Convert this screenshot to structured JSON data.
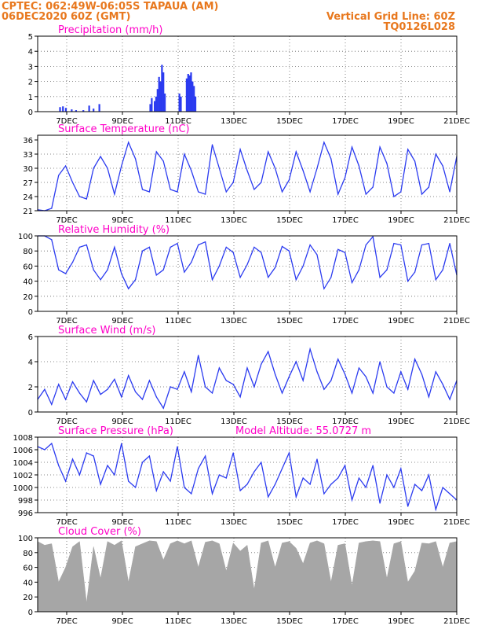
{
  "header": {
    "line1_left": "CPTEC:   062:49W-06:05S   TAPAUA (AM)",
    "line2_left": "06DEC2020 60Z (GMT)",
    "line2_right": "Vertical Grid Line: 60Z",
    "line3_right": "TQ0126L028"
  },
  "colors": {
    "header": "#e8781e",
    "title": "#ff00c8",
    "series": "#2b3bf0",
    "cloud": "#a6a6a6"
  },
  "x_labels": [
    "7DEC",
    "9DEC",
    "11DEC",
    "13DEC",
    "15DEC",
    "17DEC",
    "19DEC",
    "21DEC"
  ],
  "chart_data": [
    {
      "type": "bar",
      "title": "Precipitation (mm/h)",
      "ylim": [
        0,
        5
      ],
      "yticks": [
        0,
        1,
        2,
        3,
        4,
        5
      ],
      "x": [
        0.2,
        0.3,
        0.4,
        0.6,
        0.75,
        1.0,
        1.2,
        1.35,
        1.55,
        3.3,
        3.35,
        3.45,
        3.5,
        3.55,
        3.6,
        3.65,
        3.7,
        3.75,
        3.8,
        4.3,
        4.35,
        4.55,
        4.6,
        4.65,
        4.7,
        4.75,
        4.8,
        4.85
      ],
      "values": [
        0.3,
        0.35,
        0.25,
        0.15,
        0.1,
        0.1,
        0.4,
        0.2,
        0.5,
        0.5,
        0.9,
        0.7,
        1.0,
        1.5,
        2.3,
        2.0,
        3.1,
        2.6,
        1.2,
        1.2,
        1.0,
        2.2,
        2.5,
        2.4,
        2.6,
        2.0,
        1.7,
        1.0
      ]
    },
    {
      "type": "line",
      "title": "Surface Temperature (nC)",
      "ylim": [
        21,
        37
      ],
      "yticks": [
        21,
        24,
        27,
        30,
        33,
        36
      ],
      "x": [
        0,
        0.25,
        0.5,
        0.75,
        1.0,
        1.25,
        1.5,
        1.75,
        2.0,
        2.25,
        2.5,
        2.75,
        3.0,
        3.25,
        3.5,
        3.75,
        4.0,
        4.25,
        4.5,
        4.75,
        5.0,
        5.25,
        5.5,
        5.75,
        6.0,
        6.25,
        6.5,
        6.75,
        7.0,
        7.25,
        7.5,
        7.75,
        8.0,
        8.25,
        8.5,
        8.75,
        9.0,
        9.25,
        9.5,
        9.75,
        10.0,
        10.25,
        10.5,
        10.75,
        11.0,
        11.25,
        11.5,
        11.75,
        12.0,
        12.25,
        12.5,
        12.75,
        13.0,
        13.25,
        13.5,
        13.75,
        14.0,
        14.25,
        14.5,
        14.75,
        15.0
      ],
      "values": [
        21.2,
        21.0,
        21.5,
        28.5,
        30.5,
        27.0,
        24.0,
        23.5,
        30.0,
        32.5,
        30.0,
        24.5,
        30.5,
        35.5,
        32.0,
        25.5,
        25.0,
        33.5,
        31.5,
        25.5,
        25.0,
        33.0,
        29.5,
        25.0,
        24.5,
        35.0,
        30.0,
        25.0,
        27.0,
        34.0,
        29.5,
        25.5,
        27.0,
        33.5,
        30.0,
        25.0,
        27.5,
        33.5,
        29.5,
        25.0,
        30.0,
        35.5,
        32.0,
        24.5,
        28.0,
        34.5,
        30.5,
        24.5,
        26.0,
        34.5,
        31.0,
        24.0,
        25.0,
        34.0,
        31.5,
        24.5,
        26.0,
        33.0,
        30.5,
        25.0,
        32.5
      ]
    },
    {
      "type": "line",
      "title": "Relative Humidity (%)",
      "ylim": [
        0,
        100
      ],
      "yticks": [
        0,
        20,
        40,
        60,
        80,
        100
      ],
      "x": [
        0,
        0.25,
        0.5,
        0.75,
        1.0,
        1.25,
        1.5,
        1.75,
        2.0,
        2.25,
        2.5,
        2.75,
        3.0,
        3.25,
        3.5,
        3.75,
        4.0,
        4.25,
        4.5,
        4.75,
        5.0,
        5.25,
        5.5,
        5.75,
        6.0,
        6.25,
        6.5,
        6.75,
        7.0,
        7.25,
        7.5,
        7.75,
        8.0,
        8.25,
        8.5,
        8.75,
        9.0,
        9.25,
        9.5,
        9.75,
        10.0,
        10.25,
        10.5,
        10.75,
        11.0,
        11.25,
        11.5,
        11.75,
        12.0,
        12.25,
        12.5,
        12.75,
        13.0,
        13.25,
        13.5,
        13.75,
        14.0,
        14.25,
        14.5,
        14.75,
        15.0
      ],
      "values": [
        100,
        100,
        95,
        55,
        50,
        65,
        85,
        88,
        55,
        42,
        55,
        85,
        50,
        30,
        42,
        80,
        85,
        48,
        55,
        85,
        90,
        52,
        65,
        88,
        92,
        42,
        60,
        85,
        78,
        45,
        62,
        85,
        78,
        45,
        58,
        86,
        80,
        42,
        60,
        88,
        75,
        30,
        45,
        82,
        78,
        38,
        55,
        88,
        99,
        45,
        55,
        90,
        88,
        40,
        52,
        88,
        90,
        42,
        55,
        90,
        48
      ]
    },
    {
      "type": "line",
      "title": "Surface Wind (m/s)",
      "ylim": [
        0,
        6
      ],
      "yticks": [
        0,
        2,
        4,
        6
      ],
      "x": [
        0,
        0.25,
        0.5,
        0.75,
        1.0,
        1.25,
        1.5,
        1.75,
        2.0,
        2.25,
        2.5,
        2.75,
        3.0,
        3.25,
        3.5,
        3.75,
        4.0,
        4.25,
        4.5,
        4.75,
        5.0,
        5.25,
        5.5,
        5.75,
        6.0,
        6.25,
        6.5,
        6.75,
        7.0,
        7.25,
        7.5,
        7.75,
        8.0,
        8.25,
        8.5,
        8.75,
        9.0,
        9.25,
        9.5,
        9.75,
        10.0,
        10.25,
        10.5,
        10.75,
        11.0,
        11.25,
        11.5,
        11.75,
        12.0,
        12.25,
        12.5,
        12.75,
        13.0,
        13.25,
        13.5,
        13.75,
        14.0,
        14.25,
        14.5,
        14.75,
        15.0
      ],
      "values": [
        1.0,
        1.8,
        0.6,
        2.2,
        1.0,
        2.4,
        1.5,
        0.8,
        2.5,
        1.4,
        1.8,
        2.6,
        1.2,
        2.9,
        1.6,
        1.0,
        2.5,
        1.2,
        0.3,
        2.0,
        1.8,
        3.2,
        1.6,
        4.5,
        2.0,
        1.5,
        3.5,
        2.5,
        2.2,
        1.2,
        3.5,
        2.0,
        3.8,
        4.8,
        3.0,
        1.5,
        2.8,
        4.0,
        2.5,
        5.0,
        3.2,
        1.8,
        2.5,
        4.2,
        3.0,
        1.5,
        3.5,
        2.8,
        1.5,
        4.0,
        2.0,
        1.5,
        3.2,
        1.8,
        4.2,
        3.0,
        1.2,
        3.2,
        2.2,
        1.0,
        2.5
      ]
    },
    {
      "type": "line",
      "title": "Surface Pressure (hPa)",
      "annotation": "Model Altitude: 55.0727 m",
      "ylim": [
        996,
        1008
      ],
      "yticks": [
        996,
        998,
        1000,
        1002,
        1004,
        1006,
        1008
      ],
      "x": [
        0,
        0.25,
        0.5,
        0.75,
        1.0,
        1.25,
        1.5,
        1.75,
        2.0,
        2.25,
        2.5,
        2.75,
        3.0,
        3.25,
        3.5,
        3.75,
        4.0,
        4.25,
        4.5,
        4.75,
        5.0,
        5.25,
        5.5,
        5.75,
        6.0,
        6.25,
        6.5,
        6.75,
        7.0,
        7.25,
        7.5,
        7.75,
        8.0,
        8.25,
        8.5,
        8.75,
        9.0,
        9.25,
        9.5,
        9.75,
        10.0,
        10.25,
        10.5,
        10.75,
        11.0,
        11.25,
        11.5,
        11.75,
        12.0,
        12.25,
        12.5,
        12.75,
        13.0,
        13.25,
        13.5,
        13.75,
        14.0,
        14.25,
        14.5,
        14.75,
        15.0
      ],
      "values": [
        1006.5,
        1006.0,
        1007.0,
        1003.5,
        1001.0,
        1004.5,
        1002.0,
        1005.5,
        1005.0,
        1000.5,
        1003.5,
        1002.0,
        1007.0,
        1001.0,
        1000.0,
        1004.0,
        1005.0,
        999.5,
        1002.5,
        1001.0,
        1006.5,
        1000.0,
        999.0,
        1003.0,
        1005.0,
        999.0,
        1002.0,
        1001.5,
        1005.5,
        999.5,
        1000.5,
        1002.5,
        1004.0,
        998.5,
        1000.5,
        1003.0,
        1005.5,
        998.5,
        1001.5,
        1000.5,
        1004.5,
        999.0,
        1000.5,
        1001.5,
        1003.5,
        998.0,
        1001.5,
        1000.0,
        1003.5,
        997.5,
        1002.0,
        1000.0,
        1003.0,
        997.0,
        1000.5,
        999.5,
        1002.0,
        996.5,
        1000.0,
        999.0,
        998.0
      ]
    },
    {
      "type": "area",
      "title": "Cloud Cover (%)",
      "ylim": [
        0,
        100
      ],
      "yticks": [
        0,
        20,
        40,
        60,
        80,
        100
      ],
      "x": [
        0,
        0.25,
        0.5,
        0.75,
        1.0,
        1.25,
        1.5,
        1.75,
        2.0,
        2.25,
        2.5,
        2.75,
        3.0,
        3.25,
        3.5,
        3.75,
        4.0,
        4.25,
        4.5,
        4.75,
        5.0,
        5.25,
        5.5,
        5.75,
        6.0,
        6.25,
        6.5,
        6.75,
        7.0,
        7.25,
        7.5,
        7.75,
        8.0,
        8.25,
        8.5,
        8.75,
        9.0,
        9.25,
        9.5,
        9.75,
        10.0,
        10.25,
        10.5,
        10.75,
        11.0,
        11.25,
        11.5,
        11.75,
        12.0,
        12.25,
        12.5,
        12.75,
        13.0,
        13.25,
        13.5,
        13.75,
        14.0,
        14.25,
        14.5,
        14.75,
        15.0
      ],
      "values": [
        95,
        90,
        92,
        40,
        60,
        88,
        95,
        12,
        88,
        45,
        95,
        90,
        96,
        40,
        88,
        92,
        96,
        95,
        70,
        92,
        96,
        92,
        96,
        60,
        94,
        96,
        92,
        55,
        93,
        82,
        90,
        30,
        93,
        96,
        60,
        93,
        95,
        86,
        65,
        93,
        96,
        92,
        40,
        90,
        92,
        35,
        93,
        95,
        96,
        95,
        45,
        92,
        95,
        40,
        55,
        93,
        92,
        95,
        60,
        93,
        95
      ]
    }
  ]
}
